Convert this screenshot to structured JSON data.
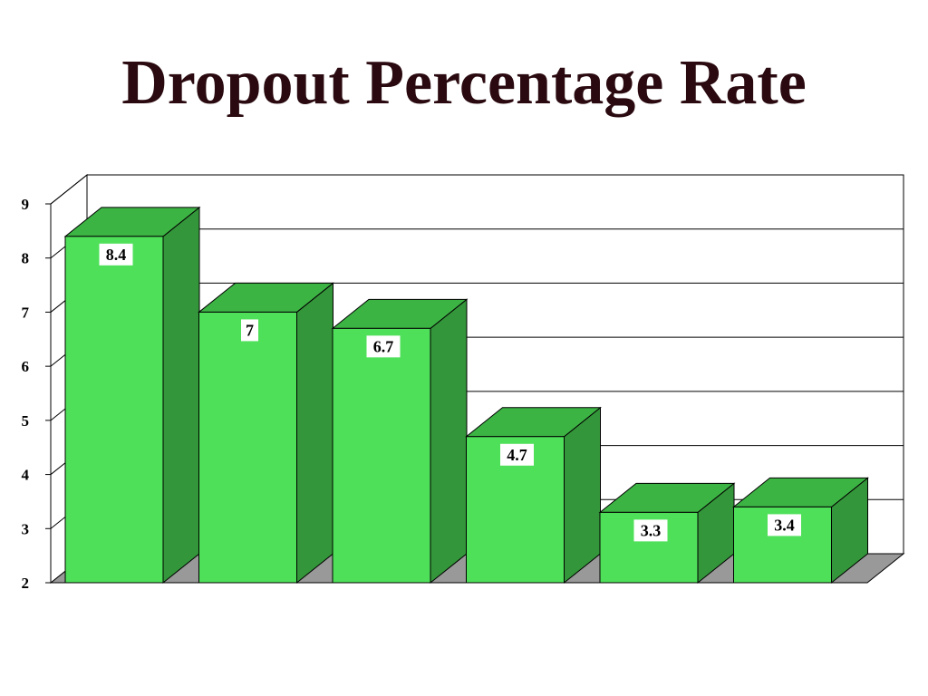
{
  "title": "Dropout Percentage Rate",
  "colors": {
    "title": "#2a0a10",
    "bar_front": "#4fe05a",
    "bar_side": "#34963a",
    "bar_top": "#3cb444",
    "floor": "#999999",
    "grid": "#000000"
  },
  "chart_data": {
    "type": "bar",
    "title": "Dropout Percentage Rate",
    "xlabel": "",
    "ylabel": "",
    "ylim": [
      2,
      9
    ],
    "yticks": [
      "2",
      "3",
      "4",
      "5",
      "6",
      "7",
      "8",
      "9"
    ],
    "categories": [
      "",
      "",
      "",
      "",
      "",
      ""
    ],
    "values": [
      8.4,
      7,
      6.7,
      4.7,
      3.3,
      3.4
    ],
    "data_labels": [
      "8.4",
      "7",
      "6.7",
      "4.7",
      "3.3",
      "3.4"
    ],
    "grid": true,
    "legend": "none",
    "style": "3d"
  }
}
